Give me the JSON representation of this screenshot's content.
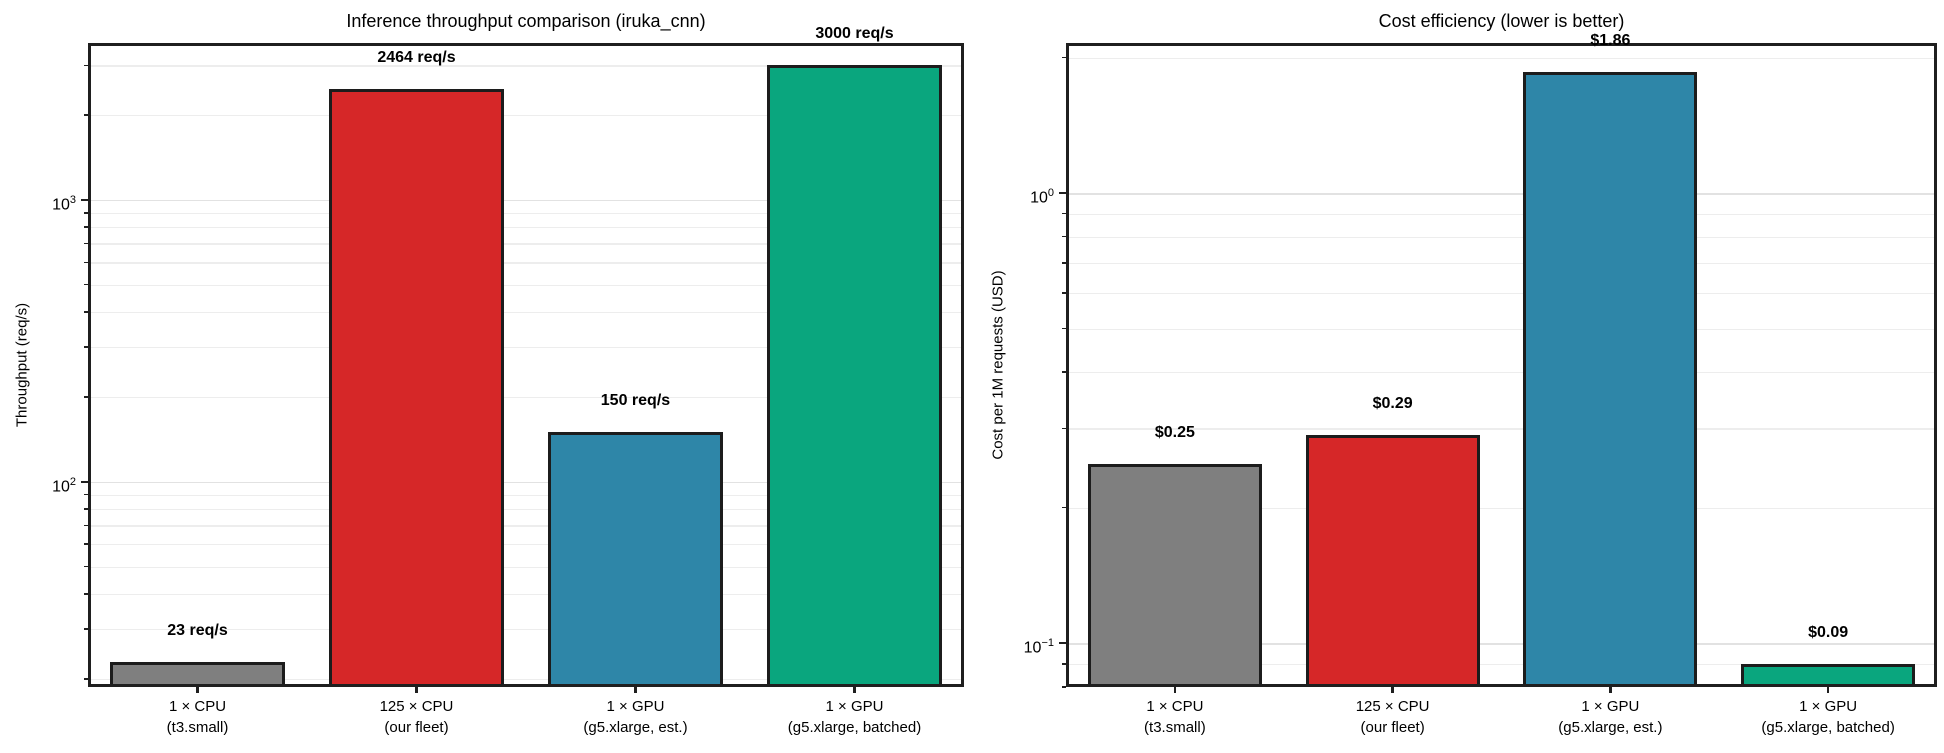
{
  "figure": {
    "background": "#ffffff"
  },
  "chart_data": [
    {
      "type": "bar",
      "title": "Inference throughput comparison (iruka_cnn)",
      "ylabel": "Throughput (req/s)",
      "yscale": "log",
      "ylim": [
        18.7,
        3600
      ],
      "grid": "horizontal-major-and-minor",
      "legend": "none",
      "categories": [
        "1 × CPU\n(t3.small)",
        "125 × CPU\n(our fleet)",
        "1 × GPU\n(g5.xlarge, est.)",
        "1 × GPU\n(g5.xlarge, batched)"
      ],
      "values": [
        23,
        2464,
        150,
        3000
      ],
      "bar_labels": [
        "23 req/s",
        "2464 req/s",
        "150 req/s",
        "3000 req/s"
      ],
      "bar_colors": [
        "#7f7f7f",
        "#d62728",
        "#2e86a8",
        "#0aa67e"
      ],
      "bar_edge_color": "#1c1c1c",
      "yticks": [
        {
          "value": 100,
          "mantissa": "10",
          "exp": "2"
        },
        {
          "value": 1000,
          "mantissa": "10",
          "exp": "3"
        }
      ]
    },
    {
      "type": "bar",
      "title": "Cost efficiency (lower is better)",
      "ylabel": "Cost per 1M requests (USD)",
      "yscale": "log",
      "ylim": [
        0.0799,
        2.154
      ],
      "grid": "horizontal-major-and-minor",
      "legend": "none",
      "categories": [
        "1 × CPU\n(t3.small)",
        "125 × CPU\n(our fleet)",
        "1 × GPU\n(g5.xlarge, est.)",
        "1 × GPU\n(g5.xlarge, batched)"
      ],
      "values": [
        0.25,
        0.29,
        1.86,
        0.09
      ],
      "bar_labels": [
        "$0.25",
        "$0.29",
        "$1.86",
        "$0.09"
      ],
      "bar_colors": [
        "#7f7f7f",
        "#d62728",
        "#2e86a8",
        "#0aa67e"
      ],
      "bar_edge_color": "#1c1c1c",
      "yticks": [
        {
          "value": 0.1,
          "mantissa": "10",
          "exp": "−1"
        },
        {
          "value": 1,
          "mantissa": "10",
          "exp": "0"
        }
      ]
    }
  ]
}
